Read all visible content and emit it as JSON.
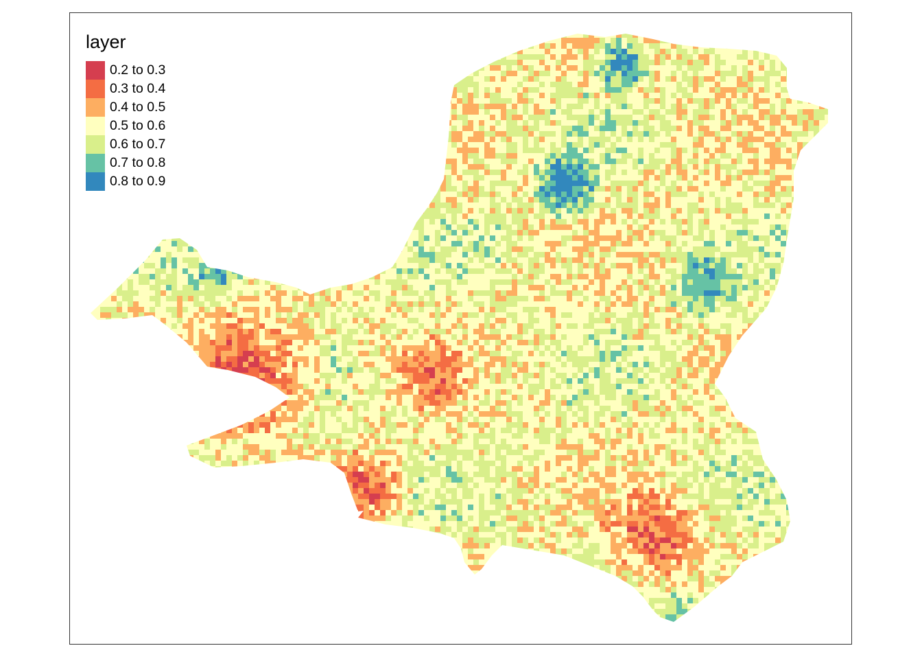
{
  "legend": {
    "title": "layer",
    "classes": [
      {
        "label": "0.2 to 0.3",
        "color": "#d53e4f"
      },
      {
        "label": "0.3 to 0.4",
        "color": "#f46d43"
      },
      {
        "label": "0.4 to 0.5",
        "color": "#fdae61"
      },
      {
        "label": "0.5 to 0.6",
        "color": "#ffffbf"
      },
      {
        "label": "0.6 to 0.7",
        "color": "#d9ef8b"
      },
      {
        "label": "0.7 to 0.8",
        "color": "#66c2a5"
      },
      {
        "label": "0.8 to 0.9",
        "color": "#3288bd"
      }
    ]
  },
  "map": {
    "type": "raster",
    "legend_position": "top-left",
    "frame": true,
    "value_range": [
      0.2,
      0.9
    ]
  }
}
